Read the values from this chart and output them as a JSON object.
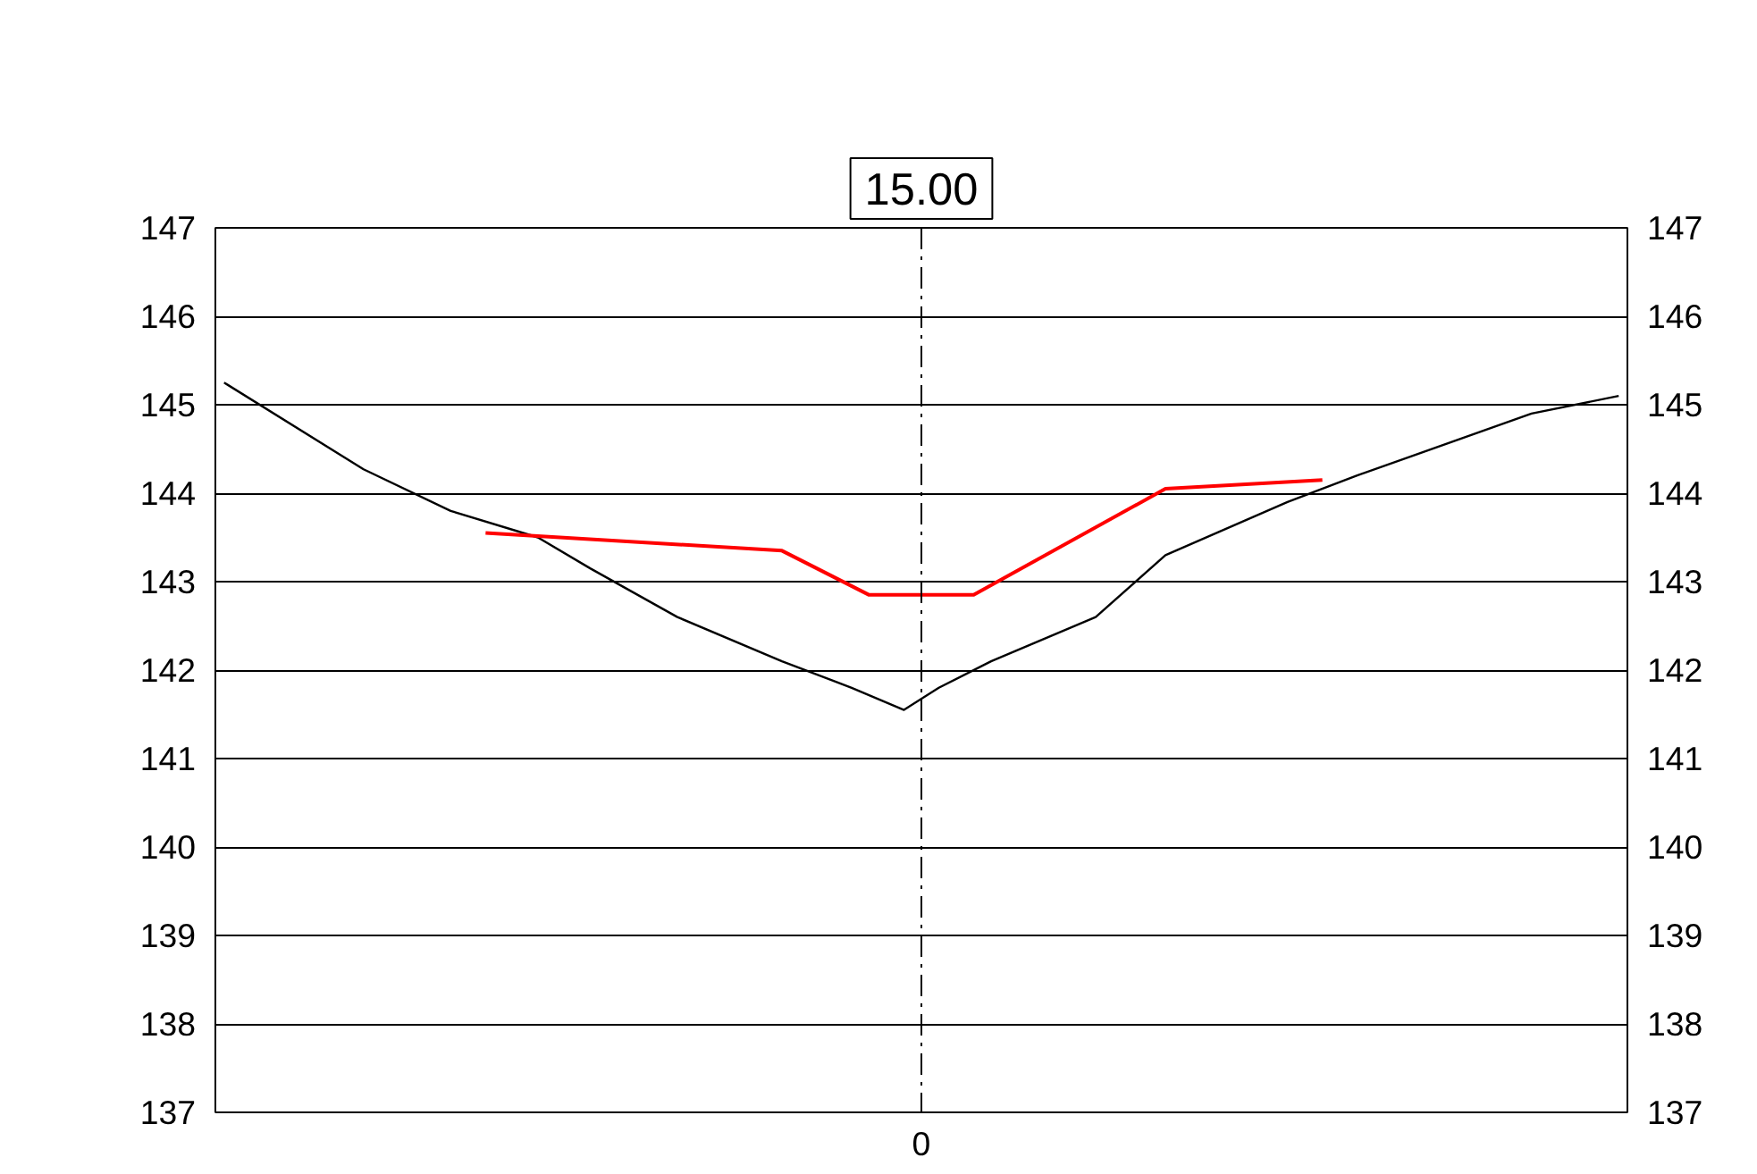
{
  "chart_data": {
    "type": "line",
    "title": "15.00",
    "categories": [
      null,
      null,
      null,
      null,
      null,
      null,
      null,
      null,
      null,
      null,
      null,
      null,
      null,
      null,
      null,
      null,
      null,
      null,
      null,
      null,
      null,
      null,
      null,
      null,
      null,
      null,
      null,
      null,
      null,
      null,
      null,
      null,
      null,
      null,
      null,
      null,
      null,
      null,
      null,
      null,
      "0",
      null,
      null,
      null,
      null,
      null,
      null,
      null,
      null,
      null,
      null,
      null,
      null,
      null,
      null,
      null,
      null,
      null,
      null,
      null,
      null,
      null,
      null,
      null,
      null,
      null,
      null,
      null,
      null,
      null,
      null,
      null,
      null,
      null,
      null,
      null,
      null,
      null,
      null,
      null,
      null
    ],
    "series": [
      {
        "color": "#000000",
        "values": [
          145.25,
          null,
          null,
          null,
          null,
          null,
          null,
          null,
          144.27,
          null,
          null,
          null,
          null,
          143.8,
          null,
          null,
          null,
          null,
          143.5,
          null,
          null,
          143.15,
          null,
          null,
          null,
          null,
          142.6,
          null,
          null,
          null,
          null,
          null,
          142.1,
          null,
          null,
          null,
          141.8,
          null,
          null,
          141.55,
          null,
          141.8,
          null,
          null,
          142.1,
          null,
          null,
          null,
          null,
          null,
          142.6,
          null,
          null,
          null,
          143.3,
          null,
          null,
          null,
          null,
          null,
          null,
          143.9,
          null,
          null,
          null,
          144.2,
          null,
          null,
          null,
          null,
          null,
          null,
          null,
          null,
          null,
          144.9,
          null,
          null,
          null,
          null,
          145.1
        ]
      },
      {
        "color": "#ff0000",
        "values": [
          null,
          null,
          null,
          null,
          null,
          null,
          null,
          null,
          null,
          null,
          null,
          null,
          null,
          null,
          null,
          143.55,
          null,
          null,
          null,
          null,
          null,
          null,
          null,
          null,
          null,
          null,
          null,
          null,
          null,
          null,
          null,
          null,
          143.35,
          null,
          null,
          null,
          null,
          142.85,
          null,
          null,
          null,
          null,
          null,
          142.85,
          null,
          null,
          null,
          null,
          null,
          null,
          null,
          null,
          null,
          null,
          144.05,
          null,
          null,
          null,
          null,
          null,
          null,
          null,
          null,
          144.15,
          null,
          null,
          null,
          null,
          null,
          null,
          null,
          null,
          null,
          null,
          null,
          null,
          null,
          null,
          null,
          null,
          null
        ]
      }
    ],
    "ylim": [
      137,
      147
    ],
    "yticks": [
      137,
      138,
      139,
      140,
      141,
      142,
      143,
      144,
      145,
      146,
      147
    ],
    "y2lim": [
      137,
      147
    ],
    "y2ticks": [
      137,
      138,
      139,
      140,
      141,
      142,
      143,
      144,
      145,
      146,
      147
    ],
    "grid": "y",
    "marker": "none",
    "line_style": "solid",
    "ref_lines": [
      {
        "axis": "x",
        "value": "0",
        "line_style": "dashed",
        "color": "#000000"
      }
    ]
  }
}
